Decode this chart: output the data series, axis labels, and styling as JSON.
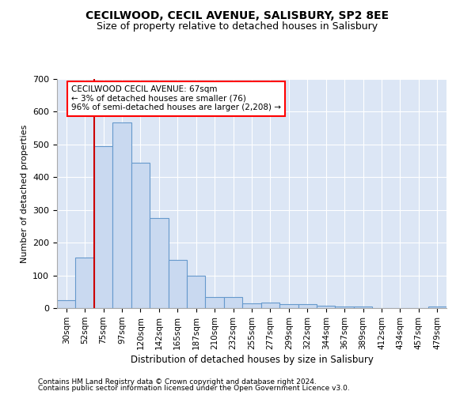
{
  "title": "CECILWOOD, CECIL AVENUE, SALISBURY, SP2 8EE",
  "subtitle": "Size of property relative to detached houses in Salisbury",
  "xlabel": "Distribution of detached houses by size in Salisbury",
  "ylabel": "Number of detached properties",
  "footer1": "Contains HM Land Registry data © Crown copyright and database right 2024.",
  "footer2": "Contains public sector information licensed under the Open Government Licence v3.0.",
  "annotation_line1": "CECILWOOD CECIL AVENUE: 67sqm",
  "annotation_line2": "← 3% of detached houses are smaller (76)",
  "annotation_line3": "96% of semi-detached houses are larger (2,208) →",
  "bar_color": "#c9d9f0",
  "bar_edge_color": "#6699cc",
  "vline_color": "#cc0000",
  "vline_x": 1.5,
  "background_color": "#dce6f5",
  "bins": [
    "30sqm",
    "52sqm",
    "75sqm",
    "97sqm",
    "120sqm",
    "142sqm",
    "165sqm",
    "187sqm",
    "210sqm",
    "232sqm",
    "255sqm",
    "277sqm",
    "299sqm",
    "322sqm",
    "344sqm",
    "367sqm",
    "389sqm",
    "412sqm",
    "434sqm",
    "457sqm",
    "479sqm"
  ],
  "values": [
    25,
    155,
    495,
    568,
    443,
    275,
    147,
    98,
    35,
    33,
    15,
    17,
    13,
    13,
    7,
    5,
    5,
    0,
    0,
    0,
    6
  ],
  "ylim": [
    0,
    700
  ],
  "yticks": [
    0,
    100,
    200,
    300,
    400,
    500,
    600,
    700
  ],
  "xlim": [
    -0.5,
    20.5
  ]
}
